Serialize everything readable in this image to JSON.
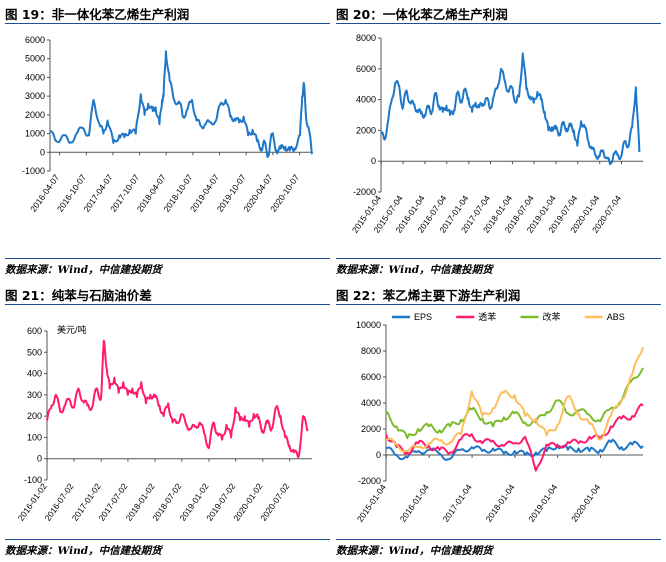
{
  "panels": [
    {
      "title": "图 19：非一体化苯乙烯生产利润",
      "source": "数据来源：Wind，中信建投期货",
      "chart_data": {
        "type": "line",
        "ylim": [
          -1000,
          6000
        ],
        "y_ticks": [
          "-1000",
          "0",
          "1000",
          "2000",
          "3000",
          "4000",
          "5000",
          "6000"
        ],
        "x_tick_labels": [
          "2016-04-07",
          "2016-10-07",
          "2017-04-07",
          "2017-10-07",
          "2018-04-07",
          "2018-10-07",
          "2019-04-07",
          "2019-10-07",
          "2020-04-07",
          "2020-10-07"
        ],
        "x_range": [
          "2016-02-01",
          "2020-12-31"
        ],
        "grid": false,
        "series": [
          {
            "color": "#1f77c8",
            "x": [
              "2016-02-01",
              "2016-03-15",
              "2016-05-01",
              "2016-06-15",
              "2016-08-01",
              "2016-09-15",
              "2016-10-25",
              "2016-11-25",
              "2017-01-05",
              "2017-02-01",
              "2017-03-01",
              "2017-04-10",
              "2017-05-20",
              "2017-06-25",
              "2017-08-01",
              "2017-09-10",
              "2017-10-15",
              "2017-11-10",
              "2017-12-05",
              "2018-01-05",
              "2018-01-25",
              "2018-02-20",
              "2018-03-10",
              "2018-03-20",
              "2018-04-05",
              "2018-05-01",
              "2018-06-01",
              "2018-07-10",
              "2018-08-01",
              "2018-09-01",
              "2018-10-01",
              "2018-11-01",
              "2018-12-01",
              "2019-01-01",
              "2019-02-01",
              "2019-03-15",
              "2019-04-15",
              "2019-05-20",
              "2019-06-20",
              "2019-07-20",
              "2019-08-20",
              "2019-09-20",
              "2019-10-20",
              "2019-11-20",
              "2019-12-20",
              "2020-01-20",
              "2020-02-10",
              "2020-03-05",
              "2020-04-01",
              "2020-05-01",
              "2020-06-01",
              "2020-07-01",
              "2020-08-01",
              "2020-09-01",
              "2020-10-10",
              "2020-10-25",
              "2020-11-05",
              "2020-11-20",
              "2020-12-10",
              "2020-12-31"
            ],
            "y": [
              1100,
              600,
              900,
              500,
              1000,
              1300,
              900,
              2800,
              1500,
              1000,
              1700,
              500,
              900,
              800,
              1200,
              1000,
              3100,
              2000,
              2600,
              2200,
              2400,
              1500,
              2800,
              3000,
              5400,
              3800,
              2800,
              2600,
              1900,
              2300,
              2800,
              1700,
              1400,
              1500,
              1600,
              1700,
              2600,
              2800,
              1900,
              1800,
              1600,
              1900,
              900,
              1200,
              600,
              200,
              500,
              -200,
              1000,
              100,
              200,
              300,
              100,
              200,
              900,
              3000,
              3700,
              1900,
              1200,
              -100
            ]
          }
        ]
      }
    },
    {
      "title": "图 20：一体化苯乙烯生产利润",
      "source": "数据来源：Wind，中信建投期货",
      "chart_data": {
        "type": "line",
        "ylim": [
          -2000,
          8000
        ],
        "y_ticks": [
          "-2000",
          "0",
          "2000",
          "4000",
          "6000",
          "8000"
        ],
        "x_tick_labels": [
          "2015-01-04",
          "2015-07-04",
          "2016-01-04",
          "2016-07-04",
          "2017-01-04",
          "2017-07-04",
          "2018-01-04",
          "2018-07-04",
          "2019-01-04",
          "2019-07-04",
          "2020-01-04",
          "2020-07-04"
        ],
        "x_range": [
          "2015-01-01",
          "2020-12-31"
        ],
        "grid": false,
        "series": [
          {
            "color": "#1f77c8",
            "x": [
              "2015-01-01",
              "2015-02-01",
              "2015-03-01",
              "2015-04-01",
              "2015-05-01",
              "2015-06-01",
              "2015-07-01",
              "2015-08-01",
              "2015-09-01",
              "2015-10-01",
              "2015-11-01",
              "2015-12-01",
              "2016-01-01",
              "2016-02-01",
              "2016-03-01",
              "2016-04-01",
              "2016-05-01",
              "2016-06-01",
              "2016-07-01",
              "2016-08-01",
              "2016-09-01",
              "2016-10-01",
              "2016-11-01",
              "2016-12-01",
              "2017-01-01",
              "2017-02-01",
              "2017-03-01",
              "2017-04-01",
              "2017-05-01",
              "2017-06-01",
              "2017-07-01",
              "2017-08-01",
              "2017-09-01",
              "2017-10-01",
              "2017-11-01",
              "2017-12-01",
              "2018-01-01",
              "2018-02-01",
              "2018-03-01",
              "2018-04-01",
              "2018-05-01",
              "2018-06-01",
              "2018-07-01",
              "2018-08-01",
              "2018-09-01",
              "2018-10-01",
              "2018-11-01",
              "2018-12-01",
              "2019-01-01",
              "2019-02-01",
              "2019-03-01",
              "2019-04-01",
              "2019-05-01",
              "2019-06-01",
              "2019-07-01",
              "2019-08-01",
              "2019-09-01",
              "2019-10-01",
              "2019-11-01",
              "2019-12-01",
              "2020-01-01",
              "2020-02-01",
              "2020-03-01",
              "2020-04-01",
              "2020-05-01",
              "2020-06-01",
              "2020-07-01",
              "2020-08-01",
              "2020-09-01",
              "2020-10-01",
              "2020-11-01",
              "2020-12-01"
            ],
            "y": [
              1800,
              1400,
              2600,
              4000,
              5100,
              4900,
              3400,
              4600,
              3800,
              3700,
              3300,
              3100,
              3000,
              3500,
              3200,
              4400,
              3600,
              3200,
              3600,
              3000,
              3300,
              4400,
              3900,
              4600,
              4100,
              3200,
              3800,
              3500,
              3700,
              4100,
              3400,
              4200,
              4800,
              6000,
              5200,
              4500,
              4800,
              3800,
              4200,
              7000,
              4700,
              4200,
              3800,
              4500,
              4000,
              3200,
              2000,
              2200,
              2100,
              1800,
              2400,
              2100,
              2300,
              2000,
              1000,
              2600,
              2200,
              1300,
              800,
              400,
              300,
              700,
              200,
              -200,
              500,
              400,
              300,
              1300,
              1000,
              2200,
              4800,
              600
            ]
          }
        ]
      }
    },
    {
      "title": "图 21：纯苯与石脑油价差",
      "source": "数据来源：Wind，中信建投期货",
      "chart_data": {
        "type": "line",
        "ylabel": "美元/吨",
        "ylim": [
          -100,
          600
        ],
        "y_ticks": [
          "-100",
          "0",
          "100",
          "200",
          "300",
          "400",
          "500",
          "600"
        ],
        "x_tick_labels": [
          "2016-01-02",
          "2016-07-02",
          "2017-01-02",
          "2017-07-02",
          "2018-01-02",
          "2018-07-02",
          "2019-01-02",
          "2019-07-02",
          "2020-01-02",
          "2020-07-02"
        ],
        "x_range": [
          "2016-01-01",
          "2020-11-30"
        ],
        "grid": false,
        "series": [
          {
            "color": "#ff1a6e",
            "x": [
              "2016-01-01",
              "2016-02-01",
              "2016-03-01",
              "2016-04-01",
              "2016-05-01",
              "2016-06-01",
              "2016-07-01",
              "2016-08-01",
              "2016-09-01",
              "2016-10-01",
              "2016-11-01",
              "2016-12-01",
              "2017-01-01",
              "2017-01-20",
              "2017-02-10",
              "2017-03-01",
              "2017-04-01",
              "2017-05-01",
              "2017-06-01",
              "2017-07-01",
              "2017-08-01",
              "2017-09-01",
              "2017-10-01",
              "2017-11-01",
              "2017-12-01",
              "2018-01-01",
              "2018-02-01",
              "2018-03-01",
              "2018-04-01",
              "2018-05-01",
              "2018-06-01",
              "2018-07-01",
              "2018-08-01",
              "2018-09-01",
              "2018-10-01",
              "2018-11-01",
              "2018-12-01",
              "2019-01-01",
              "2019-02-01",
              "2019-03-01",
              "2019-04-01",
              "2019-05-01",
              "2019-06-01",
              "2019-07-01",
              "2019-08-01",
              "2019-09-01",
              "2019-10-01",
              "2019-11-01",
              "2019-12-01",
              "2020-01-01",
              "2020-02-01",
              "2020-03-01",
              "2020-04-01",
              "2020-05-01",
              "2020-06-01",
              "2020-07-01",
              "2020-08-01",
              "2020-09-01",
              "2020-10-01",
              "2020-11-01"
            ],
            "y": [
              180,
              250,
              300,
              220,
              250,
              280,
              240,
              330,
              270,
              250,
              240,
              330,
              280,
              555,
              420,
              330,
              380,
              310,
              360,
              300,
              330,
              290,
              360,
              260,
              300,
              290,
              250,
              200,
              260,
              170,
              170,
              210,
              160,
              140,
              150,
              170,
              120,
              50,
              170,
              120,
              90,
              160,
              100,
              240,
              180,
              200,
              150,
              210,
              190,
              130,
              170,
              140,
              240,
              200,
              100,
              60,
              30,
              10,
              200,
              130
            ]
          }
        ]
      }
    },
    {
      "title": "图 22：苯乙烯主要下游生产利润",
      "source": "数据来源：Wind，中信建投期货",
      "chart_data": {
        "type": "line",
        "ylim": [
          -2000,
          10000
        ],
        "y_ticks": [
          "-2000",
          "0",
          "2000",
          "4000",
          "6000",
          "8000",
          "10000"
        ],
        "x_tick_labels": [
          "2015-01-04",
          "2016-01-04",
          "2017-01-04",
          "2018-01-04",
          "2019-01-04",
          "2020-01-04"
        ],
        "x_range": [
          "2015-01-01",
          "2020-12-31"
        ],
        "grid": false,
        "legend": "top",
        "series": [
          {
            "name": "EPS",
            "color": "#1f77c8",
            "x": [
              "2015-01-01",
              "2015-04-01",
              "2015-07-01",
              "2015-10-01",
              "2016-01-01",
              "2016-04-01",
              "2016-07-01",
              "2016-10-01",
              "2017-01-01",
              "2017-04-01",
              "2017-07-01",
              "2017-10-01",
              "2018-01-01",
              "2018-04-01",
              "2018-07-01",
              "2018-10-01",
              "2019-01-01",
              "2019-04-01",
              "2019-07-01",
              "2019-10-01",
              "2020-01-01",
              "2020-04-01",
              "2020-07-01",
              "2020-10-01",
              "2020-12-31"
            ],
            "y": [
              500,
              0,
              -200,
              300,
              400,
              100,
              -300,
              400,
              600,
              300,
              500,
              100,
              300,
              0,
              200,
              300,
              800,
              400,
              500,
              300,
              400,
              1000,
              600,
              800,
              700
            ]
          },
          {
            "name": "透苯",
            "color": "#ff1a6e",
            "x": [
              "2015-01-01",
              "2015-04-01",
              "2015-07-01",
              "2015-10-01",
              "2016-01-01",
              "2016-04-01",
              "2016-07-01",
              "2016-10-01",
              "2017-01-01",
              "2017-04-01",
              "2017-07-01",
              "2017-10-01",
              "2018-01-01",
              "2018-04-01",
              "2018-07-01",
              "2018-10-01",
              "2019-01-01",
              "2019-04-01",
              "2019-07-01",
              "2019-10-01",
              "2020-01-01",
              "2020-04-01",
              "2020-07-01",
              "2020-10-01",
              "2020-12-31"
            ],
            "y": [
              1600,
              600,
              200,
              900,
              700,
              400,
              200,
              1200,
              1600,
              900,
              1100,
              700,
              900,
              1400,
              -1200,
              800,
              600,
              1000,
              900,
              1400,
              1200,
              2200,
              2800,
              3000,
              3800
            ]
          },
          {
            "name": "改苯",
            "color": "#7dbb2c",
            "x": [
              "2015-01-01",
              "2015-04-01",
              "2015-07-01",
              "2015-10-01",
              "2016-01-01",
              "2016-04-01",
              "2016-07-01",
              "2016-10-01",
              "2017-01-01",
              "2017-04-01",
              "2017-07-01",
              "2017-10-01",
              "2018-01-01",
              "2018-04-01",
              "2018-07-01",
              "2018-10-01",
              "2019-01-01",
              "2019-04-01",
              "2019-07-01",
              "2019-10-01",
              "2020-01-01",
              "2020-04-01",
              "2020-07-01",
              "2020-10-01",
              "2020-12-31"
            ],
            "y": [
              3300,
              2200,
              1300,
              2000,
              2200,
              1900,
              2200,
              2700,
              3500,
              2800,
              2200,
              2900,
              3200,
              2500,
              2500,
              3300,
              4200,
              3200,
              3400,
              3100,
              2600,
              3600,
              4200,
              5800,
              6700
            ]
          },
          {
            "name": "ABS",
            "color": "#fdbf5e",
            "x": [
              "2015-01-01",
              "2015-04-01",
              "2015-07-01",
              "2015-10-01",
              "2016-01-01",
              "2016-04-01",
              "2016-07-01",
              "2016-10-01",
              "2017-01-01",
              "2017-04-01",
              "2017-07-01",
              "2017-10-01",
              "2018-01-01",
              "2018-04-01",
              "2018-07-01",
              "2018-10-01",
              "2019-01-01",
              "2019-04-01",
              "2019-07-01",
              "2019-10-01",
              "2020-01-01",
              "2020-04-01",
              "2020-07-01",
              "2020-10-01",
              "2020-12-31"
            ],
            "y": [
              1200,
              800,
              300,
              600,
              900,
              1100,
              1000,
              1600,
              4900,
              3000,
              3600,
              4800,
              4600,
              3000,
              2800,
              1500,
              2300,
              4500,
              3200,
              2400,
              1200,
              3000,
              4200,
              6200,
              8300
            ]
          }
        ]
      }
    }
  ]
}
